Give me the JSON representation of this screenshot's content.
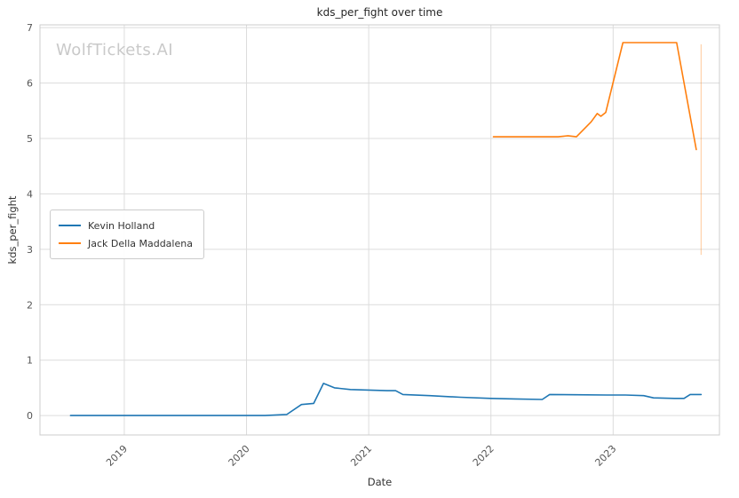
{
  "watermark": {
    "text": "WolfTickets.AI"
  },
  "chart_data": {
    "type": "line",
    "title": "kds_per_fight over time",
    "xlabel": "Date",
    "ylabel": "kds_per_fight",
    "xlim": [
      2018.31,
      2023.87
    ],
    "ylim": [
      -0.35,
      7.05
    ],
    "grid": true,
    "legend_position": "center-left",
    "colors": {
      "grid": "#dcdcdc",
      "spine": "#cccccc",
      "tick": "#555555",
      "title": "#262626",
      "watermark": "#c9c9c9"
    },
    "xticks": {
      "values": [
        2019,
        2020,
        2021,
        2022,
        2023
      ],
      "labels": [
        "2019",
        "2020",
        "2021",
        "2022",
        "2023"
      ]
    },
    "yticks": {
      "values": [
        0,
        1,
        2,
        3,
        4,
        5,
        6,
        7
      ],
      "labels": [
        "0",
        "1",
        "2",
        "3",
        "4",
        "5",
        "6",
        "7"
      ]
    },
    "series": [
      {
        "name": "Kevin Holland",
        "color": "#1f77b4",
        "x": [
          2018.56,
          2018.8,
          2019.05,
          2019.25,
          2019.5,
          2019.75,
          2019.95,
          2020.15,
          2020.33,
          2020.45,
          2020.55,
          2020.63,
          2020.72,
          2020.85,
          2021.0,
          2021.15,
          2021.22,
          2021.28,
          2021.5,
          2021.75,
          2022.0,
          2022.2,
          2022.42,
          2022.48,
          2022.7,
          2022.95,
          2023.1,
          2023.25,
          2023.33,
          2023.5,
          2023.58,
          2023.63,
          2023.72
        ],
        "y": [
          0,
          0,
          0,
          0,
          0,
          0,
          0,
          0,
          0.02,
          0.2,
          0.22,
          0.58,
          0.5,
          0.47,
          0.46,
          0.45,
          0.45,
          0.38,
          0.36,
          0.33,
          0.31,
          0.3,
          0.29,
          0.38,
          0.375,
          0.37,
          0.37,
          0.36,
          0.32,
          0.31,
          0.31,
          0.38,
          0.38
        ]
      },
      {
        "name": "Jack Della Maddalena",
        "color": "#ff7f0e",
        "x": [
          2022.02,
          2022.3,
          2022.55,
          2022.63,
          2022.7,
          2022.82,
          2022.87,
          2022.9,
          2022.94,
          2023.08,
          2023.3,
          2023.52,
          2023.68
        ],
        "y": [
          5.03,
          5.03,
          5.03,
          5.05,
          5.03,
          5.3,
          5.45,
          5.4,
          5.47,
          6.73,
          6.73,
          6.73,
          4.8
        ]
      }
    ],
    "annotations": [
      {
        "type": "vline",
        "x": 2023.72,
        "y_from": 2.9,
        "y_to": 6.7,
        "color": "#ff7f0e",
        "opacity": 0.35
      }
    ]
  }
}
